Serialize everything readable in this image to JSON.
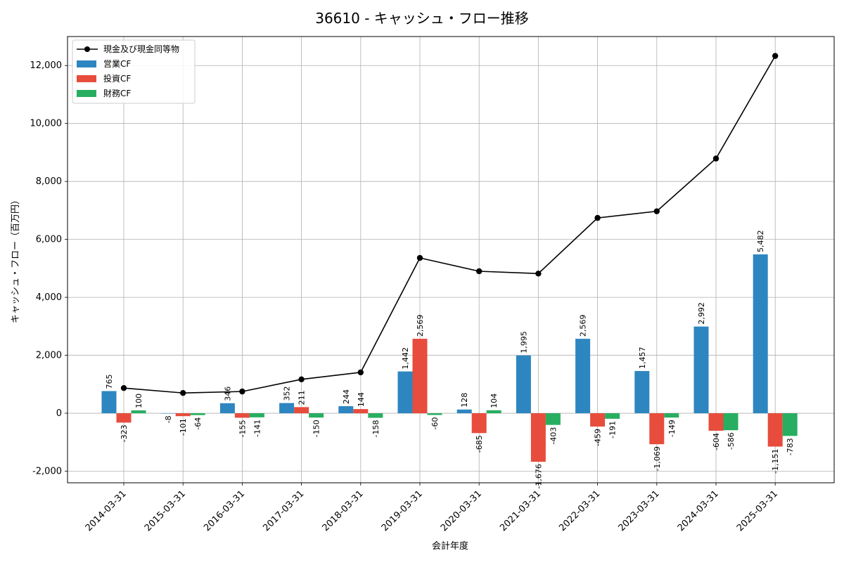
{
  "chart_data": {
    "type": "bar",
    "title": "36610 - キャッシュ・フロー推移",
    "xlabel": "会計年度",
    "ylabel": "キャッシュ・フロー（百万円）",
    "ylim": [
      -2400,
      13000
    ],
    "yticks": [
      -2000,
      0,
      2000,
      4000,
      6000,
      8000,
      10000,
      12000
    ],
    "ytick_labels": [
      "-2,000",
      "0",
      "2,000",
      "4,000",
      "6,000",
      "8,000",
      "10,000",
      "12,000"
    ],
    "grid": true,
    "legend_position": "top-left",
    "categories": [
      "2014-03-31",
      "2015-03-31",
      "2016-03-31",
      "2017-03-31",
      "2018-03-31",
      "2019-03-31",
      "2020-03-31",
      "2021-03-31",
      "2022-03-31",
      "2023-03-31",
      "2024-03-31",
      "2025-03-31"
    ],
    "series": [
      {
        "name": "営業CF",
        "type": "bar",
        "color": "#2e86c1",
        "values": [
          765,
          -8,
          346,
          352,
          244,
          1442,
          128,
          1995,
          2569,
          1457,
          2992,
          5482
        ],
        "labels": [
          "765",
          "-8",
          "346",
          "352",
          "244",
          "1,442",
          "128",
          "1,995",
          "2,569",
          "1,457",
          "2,992",
          "5,482"
        ]
      },
      {
        "name": "投資CF",
        "type": "bar",
        "color": "#e74c3c",
        "values": [
          -323,
          -101,
          -155,
          211,
          144,
          2569,
          -685,
          -1676,
          -459,
          -1069,
          -604,
          -1151
        ],
        "labels": [
          "-323",
          "-101",
          "-155",
          "211",
          "144",
          "2,569",
          "-685",
          "-1,676",
          "-459",
          "-1,069",
          "-604",
          "-1,151"
        ]
      },
      {
        "name": "財務CF",
        "type": "bar",
        "color": "#27ae60",
        "values": [
          100,
          -64,
          -141,
          -150,
          -158,
          -60,
          104,
          -403,
          -191,
          -149,
          -586,
          -783
        ],
        "labels": [
          "100",
          "-64",
          "-141",
          "-150",
          "-158",
          "-60",
          "104",
          "-403",
          "-191",
          "-149",
          "-586",
          "-783"
        ]
      },
      {
        "name": "現金及び現金同等物",
        "type": "line",
        "color": "#000000",
        "values": [
          870,
          700,
          750,
          1170,
          1410,
          5360,
          4900,
          4820,
          6740,
          6970,
          8790,
          12330
        ]
      }
    ],
    "legend": [
      "現金及び現金同等物",
      "営業CF",
      "投資CF",
      "財務CF"
    ]
  }
}
